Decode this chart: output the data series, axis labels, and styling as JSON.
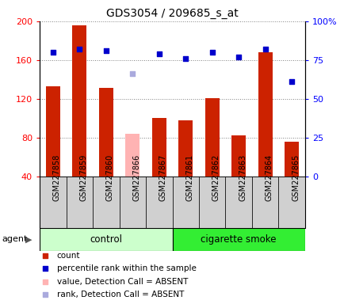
{
  "title": "GDS3054 / 209685_s_at",
  "samples": [
    "GSM227858",
    "GSM227859",
    "GSM227860",
    "GSM227866",
    "GSM227867",
    "GSM227861",
    "GSM227862",
    "GSM227863",
    "GSM227864",
    "GSM227865"
  ],
  "counts": [
    133,
    196,
    131,
    null,
    100,
    98,
    121,
    82,
    168,
    76
  ],
  "absent_counts": [
    null,
    null,
    null,
    84,
    null,
    null,
    null,
    null,
    null,
    null
  ],
  "ranks_pct": [
    80,
    82,
    81,
    null,
    79,
    76,
    80,
    77,
    82,
    61
  ],
  "absent_ranks_pct": [
    null,
    null,
    null,
    66,
    null,
    null,
    null,
    null,
    null,
    null
  ],
  "ylim_left": [
    40,
    200
  ],
  "ylim_right": [
    0,
    100
  ],
  "yticks_left": [
    40,
    80,
    120,
    160,
    200
  ],
  "yticks_right": [
    0,
    25,
    50,
    75,
    100
  ],
  "ytick_labels_left": [
    "40",
    "80",
    "120",
    "160",
    "200"
  ],
  "ytick_labels_right": [
    "0",
    "25",
    "50",
    "75",
    "100%"
  ],
  "n_control": 5,
  "n_smoke": 5,
  "bar_color": "#cc2200",
  "absent_bar_color": "#ffb3b3",
  "rank_color": "#0000cc",
  "absent_rank_color": "#aaaadd",
  "control_color_light": "#ccffcc",
  "smoke_color_bright": "#33ee33",
  "control_label": "control",
  "smoke_label": "cigarette smoke",
  "agent_label": "agent",
  "legend_items": [
    {
      "color": "#cc2200",
      "label": "count"
    },
    {
      "color": "#0000cc",
      "label": "percentile rank within the sample"
    },
    {
      "color": "#ffb3b3",
      "label": "value, Detection Call = ABSENT"
    },
    {
      "color": "#aaaadd",
      "label": "rank, Detection Call = ABSENT"
    }
  ],
  "bar_width": 0.55,
  "title_fontsize": 10,
  "sample_label_fontsize": 7,
  "ytick_fontsize": 8,
  "legend_fontsize": 7.5,
  "gray_bg": "#d0d0d0"
}
